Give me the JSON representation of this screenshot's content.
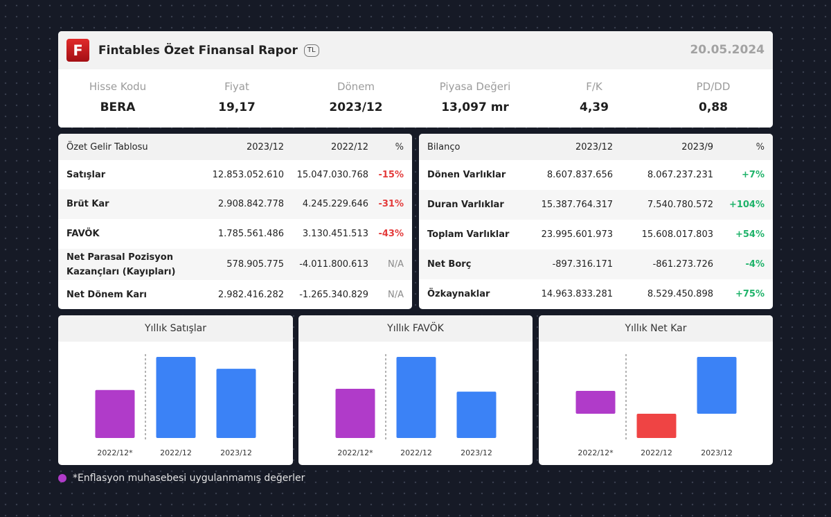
{
  "header": {
    "logo_letter": "F",
    "title": "Fintables Özet Finansal Rapor",
    "currency_badge": "TL",
    "date": "20.05.2024"
  },
  "metrics": [
    {
      "label": "Hisse Kodu",
      "value": "BERA"
    },
    {
      "label": "Fiyat",
      "value": "19,17"
    },
    {
      "label": "Dönem",
      "value": "2023/12"
    },
    {
      "label": "Piyasa Değeri",
      "value": "13,097 mr"
    },
    {
      "label": "F/K",
      "value": "4,39"
    },
    {
      "label": "PD/DD",
      "value": "0,88"
    }
  ],
  "income": {
    "headers": [
      "Özet Gelir Tablosu",
      "2023/12",
      "2022/12",
      "%"
    ],
    "rows": [
      {
        "name": "Satışlar",
        "v1": "12.853.052.610",
        "v2": "15.047.030.768",
        "pct": "-15%",
        "status": "neg"
      },
      {
        "name": "Brüt Kar",
        "v1": "2.908.842.778",
        "v2": "4.245.229.646",
        "pct": "-31%",
        "status": "neg"
      },
      {
        "name": "FAVÖK",
        "v1": "1.785.561.486",
        "v2": "3.130.451.513",
        "pct": "-43%",
        "status": "neg"
      },
      {
        "name": "Net Parasal Pozisyon Kazançları (Kayıpları)",
        "v1": "578.905.775",
        "v2": "-4.011.800.613",
        "pct": "N/A",
        "status": "na"
      },
      {
        "name": "Net Dönem Karı",
        "v1": "2.982.416.282",
        "v2": "-1.265.340.829",
        "pct": "N/A",
        "status": "na"
      }
    ]
  },
  "balance": {
    "headers": [
      "Bilanço",
      "2023/12",
      "2023/9",
      "%"
    ],
    "rows": [
      {
        "name": "Dönen Varlıklar",
        "v1": "8.607.837.656",
        "v2": "8.067.237.231",
        "pct": "+7%",
        "status": "pos"
      },
      {
        "name": "Duran Varlıklar",
        "v1": "15.387.764.317",
        "v2": "7.540.780.572",
        "pct": "+104%",
        "status": "pos"
      },
      {
        "name": "Toplam Varlıklar",
        "v1": "23.995.601.973",
        "v2": "15.608.017.803",
        "pct": "+54%",
        "status": "pos"
      },
      {
        "name": "Net Borç",
        "v1": "-897.316.171",
        "v2": "-861.273.726",
        "pct": "-4%",
        "status": "pos"
      },
      {
        "name": "Özkaynaklar",
        "v1": "14.963.833.281",
        "v2": "8.529.450.898",
        "pct": "+75%",
        "status": "pos"
      }
    ]
  },
  "colors": {
    "purple": "#b03bc9",
    "blue": "#3b82f6",
    "red": "#ef4444",
    "positive": "#1fb36a",
    "negative": "#e33b3b"
  },
  "chart_data": [
    {
      "type": "bar",
      "title": "Yıllık Satışlar",
      "categories": [
        "2022/12*",
        "2022/12",
        "2023/12"
      ],
      "values": [
        8.9,
        15.05,
        12.85
      ],
      "ylim": [
        0,
        15.05
      ],
      "colors": [
        "#b03bc9",
        "#3b82f6",
        "#3b82f6"
      ]
    },
    {
      "type": "bar",
      "title": "Yıllık FAVÖK",
      "categories": [
        "2022/12*",
        "2022/12",
        "2023/12"
      ],
      "values": [
        1.9,
        3.13,
        1.79
      ],
      "ylim": [
        0,
        3.13
      ],
      "colors": [
        "#b03bc9",
        "#3b82f6",
        "#3b82f6"
      ]
    },
    {
      "type": "bar",
      "title": "Yıllık Net Kar",
      "categories": [
        "2022/12*",
        "2022/12",
        "2023/12"
      ],
      "values": [
        1.2,
        -1.27,
        2.98
      ],
      "ylim": [
        -1.27,
        2.98
      ],
      "colors": [
        "#b03bc9",
        "#ef4444",
        "#3b82f6"
      ]
    }
  ],
  "footnote": "*Enflasyon muhasebesi uygulanmamış değerler"
}
